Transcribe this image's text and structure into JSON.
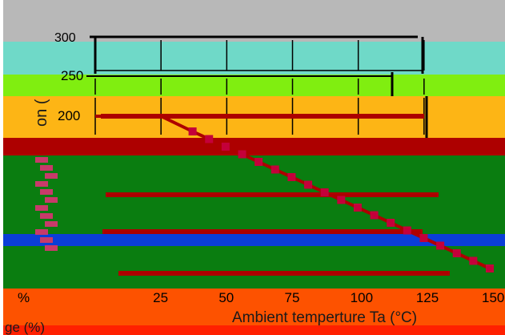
{
  "chart_data": {
    "type": "line",
    "title": "",
    "xlabel": "Ambient temperture  Ta  (°C)",
    "ylabel": "",
    "ylabel_left_fragment": "on (",
    "ylabel_bottom_fragment": "ge (%)",
    "x_tick_labels": [
      "25",
      "50",
      "75",
      "100",
      "125",
      "150"
    ],
    "y_tick_labels": [
      "300",
      "250",
      "200"
    ],
    "x_origin_fragment": "%",
    "xlim": [
      0,
      150
    ],
    "series": [
      {
        "x": [
          0,
          25,
          37,
          150
        ],
        "y": [
          200,
          200,
          180,
          0
        ]
      }
    ],
    "colors": {
      "band_gray": "#b8b8b8",
      "band_teal": "#6fd9c8",
      "band_lime": "#80ee10",
      "band_orange": "#fdb515",
      "band_darkred": "#ad0000",
      "band_green": "#0a7d10",
      "band_blue": "#0b3ed8",
      "band_orange_red": "#fd5200",
      "band_red": "#ff2000",
      "line": "#ad0000",
      "marker": "#c4003a"
    }
  }
}
